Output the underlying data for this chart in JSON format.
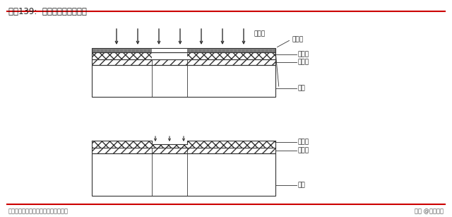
{
  "title": "图表139:  面板光刻胶曝光机理",
  "footer_left": "资料来源：现代显示，华泰证券研究所",
  "footer_right": "头条 @未来智库",
  "bg_color": "#ffffff",
  "line_color": "#333333",
  "hatch_color": "#555555",
  "red_line_color": "#cc0000",
  "labels_top": {
    "uv_light": "紫外光",
    "mask": "掩膜版",
    "photoresist": "光刻胶",
    "oxide": "氧化铟",
    "substrate": "基板"
  },
  "labels_bottom": {
    "photoresist": "光刻胶",
    "oxide": "氧化铟",
    "substrate": "基板"
  }
}
